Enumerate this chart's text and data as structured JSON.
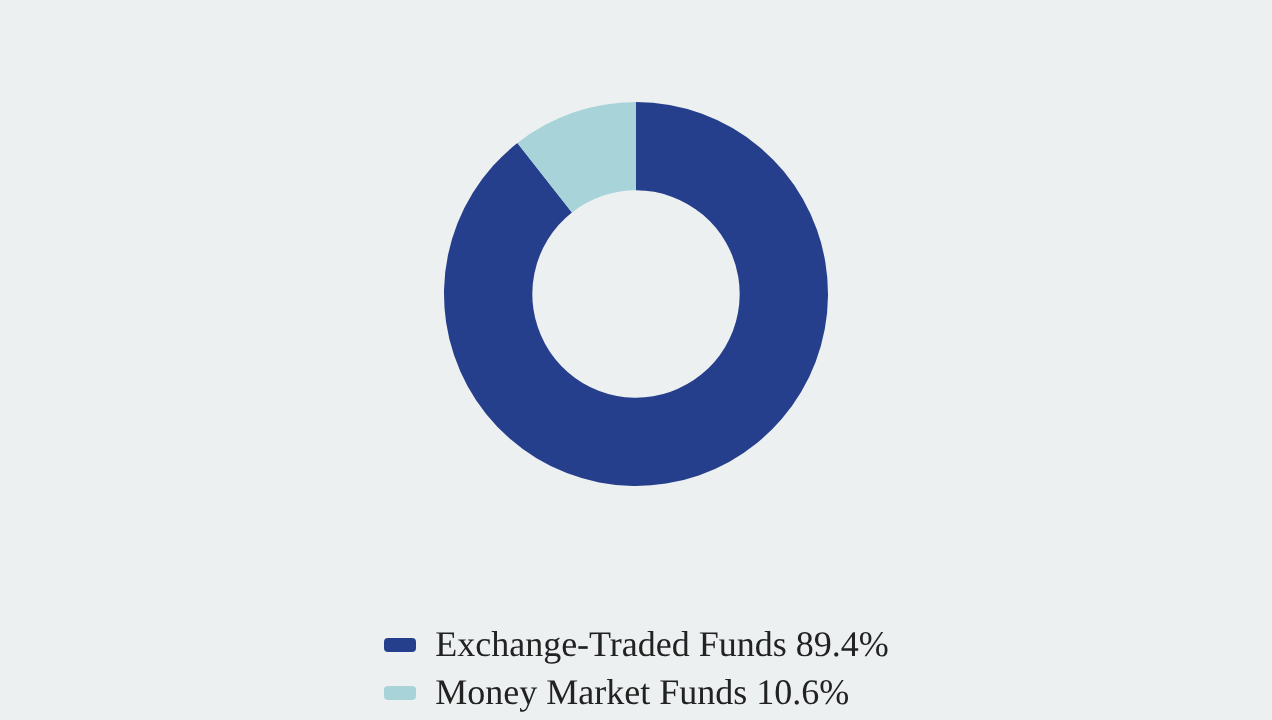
{
  "chart_data": {
    "type": "donut",
    "categories": [
      "Exchange-Traded Funds",
      "Money Market Funds"
    ],
    "values": [
      89.4,
      10.6
    ],
    "value_labels": [
      "89.4%",
      "10.6%"
    ],
    "colors": [
      "#253f8c",
      "#a8d3d8"
    ],
    "legend": "bottom"
  }
}
